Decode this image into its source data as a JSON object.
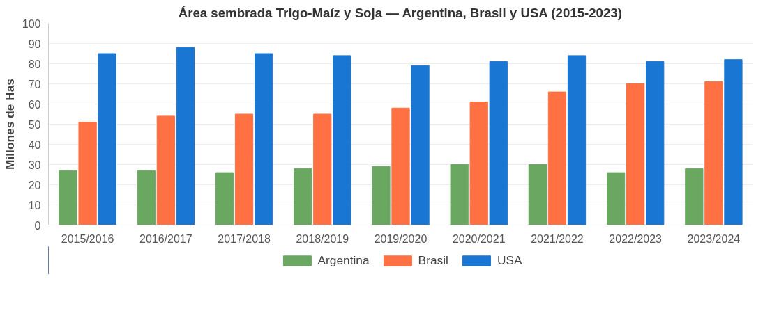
{
  "chart_data": {
    "type": "bar",
    "title": "Área sembrada Trigo-Maíz y Soja — Argentina, Brasil y USA (2015-2023)",
    "ylabel": "Millones de Has",
    "categories": [
      "2015/2016",
      "2016/2017",
      "2017/2018",
      "2018/2019",
      "2019/2020",
      "2020/2021",
      "2021/2022",
      "2022/2023",
      "2023/2024"
    ],
    "series": [
      {
        "name": "Argentina",
        "color": "#6aa760",
        "values": [
          27,
          27,
          26,
          28,
          29,
          30,
          30,
          26,
          28
        ]
      },
      {
        "name": "Brasil",
        "color": "#ff7043",
        "values": [
          51,
          54,
          55,
          55,
          58,
          61,
          66,
          70,
          71
        ]
      },
      {
        "name": "USA",
        "color": "#1976d2",
        "values": [
          85,
          88,
          85,
          84,
          79,
          81,
          84,
          81,
          82
        ]
      }
    ],
    "ylim": [
      0,
      100
    ],
    "yticks": [
      0,
      10,
      20,
      30,
      40,
      50,
      60,
      70,
      80,
      90,
      100
    ],
    "grid": "y",
    "legend": "bottom"
  }
}
